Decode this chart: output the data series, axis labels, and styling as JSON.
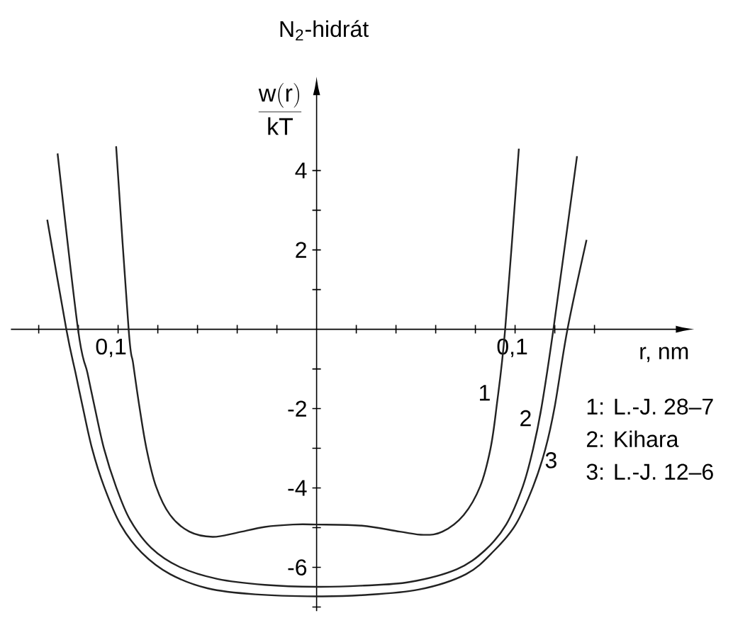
{
  "chart_data": {
    "type": "line",
    "title": "N$_{2}$-hidrát",
    "xlabel": "r, nm",
    "ylabel": "\\frac{\\mathrm{w(r)}}{\\mathrm{kT}}",
    "xlim": [
      -0.154,
      0.181
    ],
    "ylim": [
      -7.1,
      5.9
    ],
    "xticks": [
      {
        "value": -0.14,
        "label": null
      },
      {
        "value": -0.12,
        "label": null
      },
      {
        "value": -0.1,
        "label": "0,1"
      },
      {
        "value": -0.08,
        "label": null
      },
      {
        "value": -0.06,
        "label": null
      },
      {
        "value": -0.04,
        "label": null
      },
      {
        "value": -0.02,
        "label": null
      },
      {
        "value": 0.02,
        "label": null
      },
      {
        "value": 0.04,
        "label": null
      },
      {
        "value": 0.06,
        "label": null
      },
      {
        "value": 0.08,
        "label": null
      },
      {
        "value": 0.1,
        "label": "0,1"
      },
      {
        "value": 0.12,
        "label": null
      },
      {
        "value": 0.14,
        "label": null
      }
    ],
    "yticks": [
      {
        "value": -7,
        "label": null
      },
      -6,
      {
        "value": -5,
        "label": null
      },
      -4,
      {
        "value": -3,
        "label": null
      },
      -2,
      {
        "value": -1,
        "label": null
      },
      {
        "value": 1,
        "label": null
      },
      2,
      {
        "value": 3,
        "label": null
      },
      4
    ],
    "series": [
      {
        "color": "#222222",
        "x": [
          -0.101,
          -0.0947,
          -0.0924,
          -0.0893,
          -0.0857,
          -0.0809,
          -0.0738,
          -0.0641,
          -0.0524,
          -0.0404,
          -0.0261,
          -0.0119,
          0,
          0.0229,
          0.0419,
          0.0539,
          0.0634,
          0.0741,
          0.0824,
          0.0876,
          0.0907,
          0.095,
          0.1019
        ],
        "values": [
          4.61,
          0,
          -0.87,
          -1.94,
          -3.01,
          -3.96,
          -4.68,
          -5.1,
          -5.23,
          -5.13,
          -4.98,
          -4.92,
          -4.92,
          -4.95,
          -5.1,
          -5.18,
          -5.1,
          -4.68,
          -3.96,
          -3.01,
          -1.94,
          0,
          4.55
        ]
      },
      {
        "color": "#222222",
        "x": [
          -0.1305,
          -0.1202,
          -0.1154,
          -0.1119,
          -0.1071,
          -0.1011,
          -0.094,
          -0.0833,
          -0.069,
          -0.05,
          -0.0261,
          0,
          0.0229,
          0.0467,
          0.0705,
          0.0848,
          0.0955,
          0.1039,
          0.1091,
          0.1134,
          0.1193,
          0.1312
        ],
        "values": [
          4.43,
          0,
          -1.11,
          -1.94,
          -3.01,
          -3.96,
          -4.8,
          -5.51,
          -5.99,
          -6.29,
          -6.44,
          -6.49,
          -6.46,
          -6.37,
          -6.05,
          -5.57,
          -4.92,
          -3.96,
          -3.01,
          -1.94,
          0,
          4.36
        ]
      },
      {
        "color": "#222222",
        "x": [
          -0.1357,
          -0.1261,
          -0.1214,
          -0.1179,
          -0.1131,
          -0.1071,
          -0.0988,
          -0.0881,
          -0.0738,
          -0.0547,
          -0.0309,
          0,
          0.0229,
          0.0514,
          0.0753,
          0.0896,
          0.1003,
          0.1091,
          0.1153,
          0.12,
          0.1264,
          0.136
        ],
        "values": [
          2.76,
          0,
          -1.11,
          -1.94,
          -3.01,
          -3.96,
          -4.92,
          -5.63,
          -6.17,
          -6.53,
          -6.68,
          -6.73,
          -6.7,
          -6.56,
          -6.17,
          -5.57,
          -4.92,
          -3.96,
          -3.01,
          -1.94,
          0,
          2.25
        ]
      }
    ],
    "annotations": [
      {
        "text": "1",
        "x": 0.0915,
        "y": -1.6
      },
      {
        "text": "2",
        "x": 0.1122,
        "y": -2.24
      },
      {
        "text": "3",
        "x": 0.1134,
        "y": -3.3
      },
      "1: L.-J. 28–7",
      "2: Kihara",
      "3: L.-J. 12–6"
    ]
  }
}
